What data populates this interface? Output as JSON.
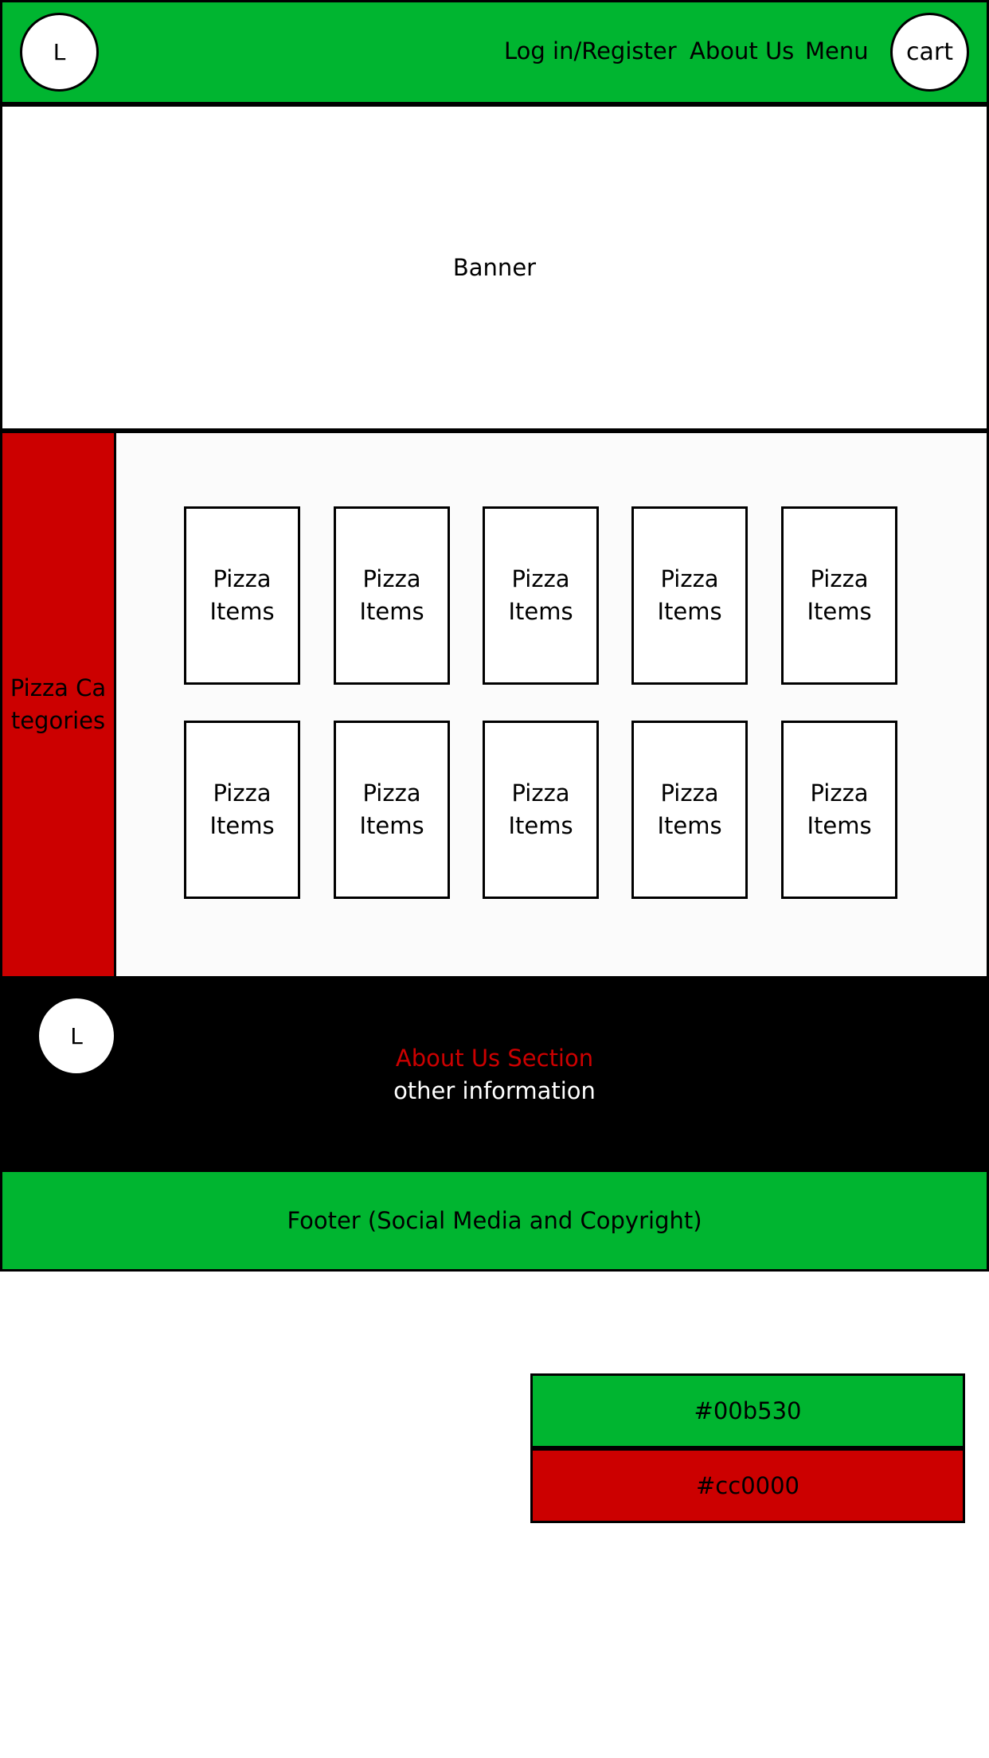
{
  "colors": {
    "green": "#00b530",
    "red": "#cc0000",
    "black": "#000000",
    "white": "#ffffff"
  },
  "header": {
    "logo": "L",
    "nav": [
      "Log in/Register",
      "About Us",
      "Menu"
    ],
    "cart": "cart"
  },
  "banner": {
    "label": "Banner"
  },
  "sidebar": {
    "label": "Pizza Categories"
  },
  "items": {
    "label": "Pizza Items",
    "rows": 2,
    "per_row": 5
  },
  "about": {
    "logo": "L",
    "title": "About Us Section",
    "info": "other information"
  },
  "footer": {
    "label": "Footer (Social Media and Copyright)"
  },
  "swatches": [
    "#00b530",
    "#cc0000"
  ]
}
